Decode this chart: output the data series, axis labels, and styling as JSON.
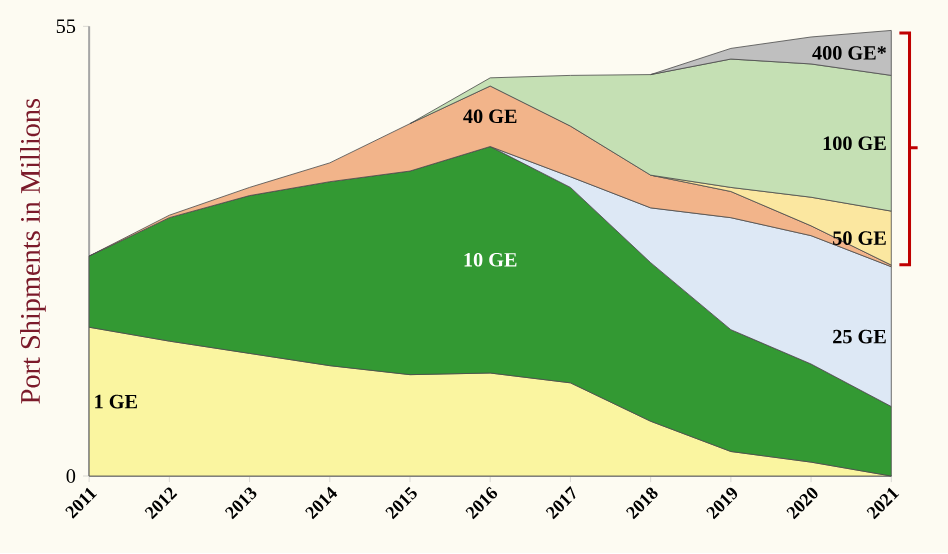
{
  "chart_data": {
    "type": "area",
    "stacked": true,
    "ylabel": "Port Shipments in Millions",
    "x": [
      2011,
      2012,
      2013,
      2014,
      2015,
      2016,
      2017,
      2018,
      2019,
      2020,
      2021
    ],
    "xlim": [
      2011,
      2021
    ],
    "xticks": [
      2011,
      2012,
      2013,
      2014,
      2015,
      2016,
      2017,
      2018,
      2019,
      2020,
      2021
    ],
    "ylim": [
      0,
      55
    ],
    "yticks": [
      0,
      55
    ],
    "series": [
      {
        "name": "1 GE",
        "color": "#faf5a0",
        "values": [
          18.2,
          16.5,
          15.0,
          13.5,
          12.4,
          12.6,
          11.4,
          6.7,
          3.0,
          1.7,
          0
        ]
      },
      {
        "name": "10 GE",
        "color": "#339933",
        "values": [
          8.7,
          15.1,
          19.3,
          22.5,
          24.9,
          27.7,
          23.9,
          19.4,
          14.9,
          12.0,
          8.5
        ]
      },
      {
        "name": "25 GE",
        "color": "#dde8f5",
        "values": [
          null,
          null,
          null,
          null,
          null,
          0,
          1.3,
          6.7,
          13.7,
          15.7,
          17.1
        ]
      },
      {
        "name": "40 GE",
        "color": "#f2b48a",
        "values": [
          0,
          0.3,
          1.0,
          2.3,
          5.8,
          7.4,
          6.2,
          4.0,
          3.2,
          1.2,
          0.2
        ]
      },
      {
        "name": "50 GE",
        "color": "#fbe7a0",
        "values": [
          null,
          null,
          null,
          null,
          null,
          null,
          null,
          0,
          0.5,
          3.5,
          6.6
        ]
      },
      {
        "name": "100 GE",
        "color": "#c5e0b4",
        "values": [
          null,
          null,
          null,
          null,
          0,
          1.0,
          6.2,
          12.3,
          15.7,
          16.3,
          16.6
        ]
      },
      {
        "name": "400 GE*",
        "color": "#bfbfbf",
        "values": [
          null,
          null,
          null,
          null,
          null,
          null,
          null,
          0,
          1.3,
          3.3,
          5.5
        ]
      }
    ]
  }
}
